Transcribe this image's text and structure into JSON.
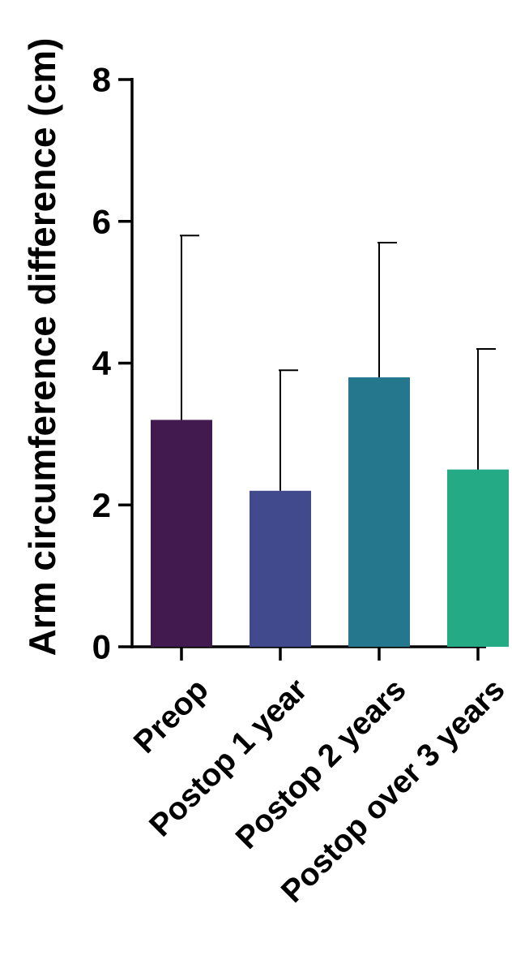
{
  "chart_data": {
    "type": "bar",
    "ylabel": "Arm circumference difference (cm)",
    "xlabel": "",
    "ylim": [
      0,
      8
    ],
    "yticks": [
      0,
      2,
      4,
      6,
      8
    ],
    "categories": [
      "Preop",
      "Postop 1 year",
      "Postop 2 years",
      "Postop over 3 years"
    ],
    "series": [
      {
        "values": [
          3.2,
          2.2,
          3.8,
          2.5
        ],
        "error_upper": [
          5.8,
          3.9,
          5.7,
          4.2
        ]
      }
    ],
    "bar_colors": [
      "#431a50",
      "#414a8c",
      "#24778c",
      "#25aa86"
    ],
    "grid": false,
    "legend": "none"
  }
}
